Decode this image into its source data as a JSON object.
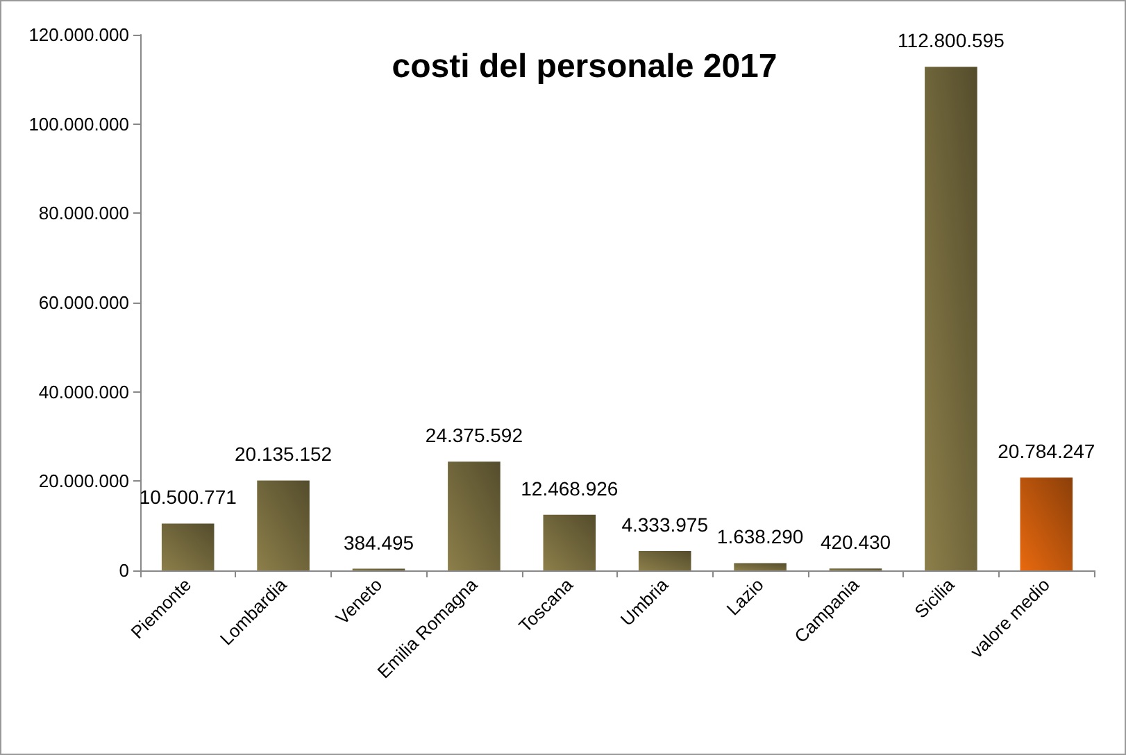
{
  "chart_data": {
    "type": "bar",
    "title": "costi del personale 2017",
    "categories": [
      "Piemonte",
      "Lombardia",
      "Veneto",
      "Emilia Romagna",
      "Toscana",
      "Umbria",
      "Lazio",
      "Campania",
      "Sicilia",
      "valore medio"
    ],
    "values": [
      10500771,
      20135152,
      384495,
      24375592,
      12468926,
      4333975,
      1638290,
      420430,
      112800595,
      20784247
    ],
    "colors": [
      "#8c7f4a",
      "#8c7f4a",
      "#8c7f4a",
      "#8c7f4a",
      "#8c7f4a",
      "#8c7f4a",
      "#8c7f4a",
      "#8c7f4a",
      "#8c7f4a",
      "#e8690f"
    ],
    "value_labels": [
      "10.500.771",
      "20.135.152",
      "384.495",
      "24.375.592",
      "12.468.926",
      "4.333.975",
      "1.638.290",
      "420.430",
      "112.800.595",
      "20.784.247"
    ],
    "ylim": [
      0,
      120000000
    ],
    "yticks": [
      {
        "value": 0,
        "label": "0"
      },
      {
        "value": 20000000,
        "label": "20.000.000"
      },
      {
        "value": 40000000,
        "label": "40.000.000"
      },
      {
        "value": 60000000,
        "label": "60.000.000"
      },
      {
        "value": 80000000,
        "label": "80.000.000"
      },
      {
        "value": 100000000,
        "label": "100.000.000"
      },
      {
        "value": 120000000,
        "label": "120.000.000"
      }
    ],
    "grid": false
  }
}
